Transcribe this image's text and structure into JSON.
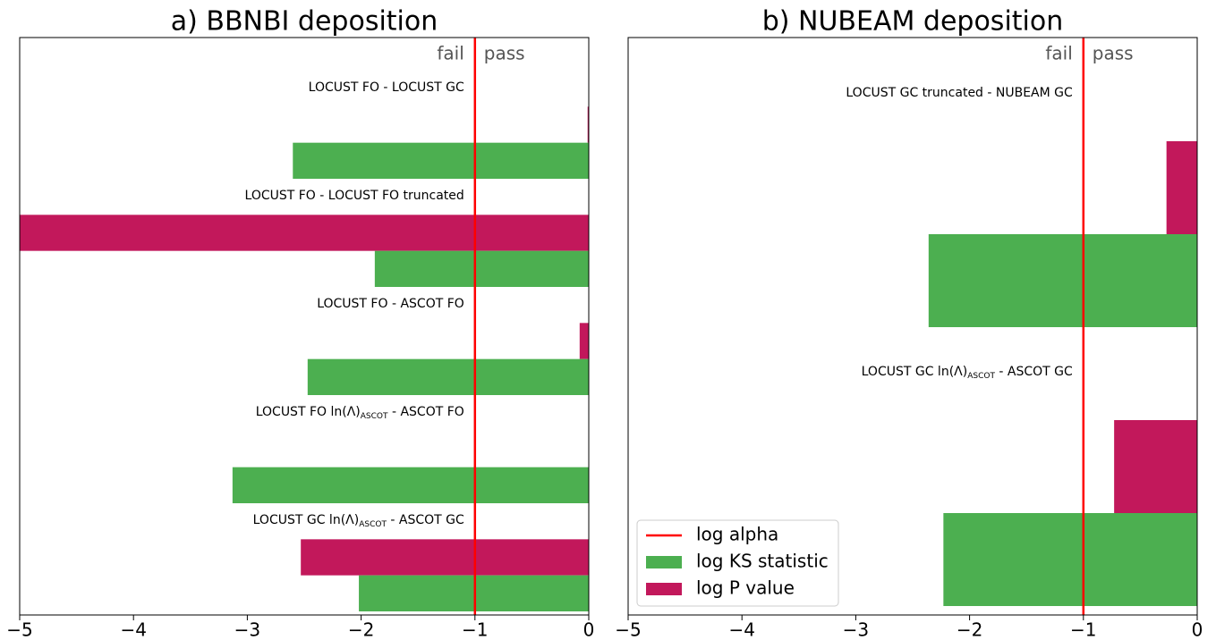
{
  "chart_data": [
    {
      "type": "barh",
      "title": "a) BBNBI deposition",
      "categories": [
        "LOCUST FO - LOCUST GC",
        "LOCUST FO - LOCUST FO truncated",
        "LOCUST FO - ASCOT FO",
        [
          {
            "text": "LOCUST FO ln(Λ)"
          },
          {
            "sub": "ASCOT"
          },
          {
            "text": " - ASCOT FO"
          }
        ],
        [
          {
            "text": "LOCUST GC ln(Λ)"
          },
          {
            "sub": "ASCOT"
          },
          {
            "text": " - ASCOT GC"
          }
        ]
      ],
      "series": [
        {
          "name": "log P value",
          "color": "#c2185b",
          "values": [
            -0.01,
            -5,
            -0.08,
            0,
            -2.53
          ]
        },
        {
          "name": "log KS statistic",
          "color": "#4caf50",
          "values": [
            -2.6,
            -1.88,
            -2.47,
            -3.13,
            -2.02
          ]
        }
      ],
      "alpha_line": {
        "name": "log alpha",
        "value": -1,
        "color": "#ff0000"
      },
      "annotations": [
        "fail",
        "pass"
      ],
      "xlim": [
        -5,
        0
      ],
      "xticks": [
        {
          "value": -5,
          "label": "−5"
        },
        {
          "value": -4,
          "label": "−4"
        },
        {
          "value": -3,
          "label": "−3"
        },
        {
          "value": -2,
          "label": "−2"
        },
        {
          "value": -1,
          "label": "−1"
        },
        0
      ]
    },
    {
      "type": "barh",
      "title": "b) NUBEAM deposition",
      "categories": [
        "LOCUST GC truncated - NUBEAM GC",
        [
          {
            "text": "LOCUST GC ln(Λ)"
          },
          {
            "sub": "ASCOT"
          },
          {
            "text": " - ASCOT GC"
          }
        ]
      ],
      "series": [
        {
          "name": "log P value",
          "color": "#c2185b",
          "values": [
            -0.27,
            -0.73
          ]
        },
        {
          "name": "log KS statistic",
          "color": "#4caf50",
          "values": [
            -2.36,
            -2.23
          ]
        }
      ],
      "alpha_line": {
        "name": "log alpha",
        "value": -1,
        "color": "#ff0000"
      },
      "annotations": [
        "fail",
        "pass"
      ],
      "xlim": [
        -5,
        0
      ],
      "xticks": [
        {
          "value": -5,
          "label": "−5"
        },
        {
          "value": -4,
          "label": "−4"
        },
        {
          "value": -3,
          "label": "−3"
        },
        {
          "value": -2,
          "label": "−2"
        },
        {
          "value": -1,
          "label": "−1"
        },
        0
      ],
      "legend": "lower left"
    }
  ]
}
